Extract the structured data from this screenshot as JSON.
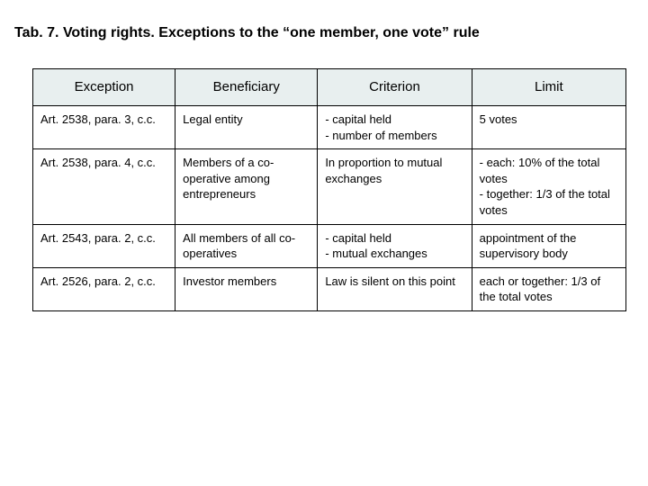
{
  "title": "Tab. 7. Voting rights. Exceptions to the “one member, one vote” rule",
  "table": {
    "headers": [
      "Exception",
      "Beneficiary",
      "Criterion",
      "Limit"
    ],
    "rows": [
      {
        "exception": "Art. 2538, para. 3, c.c.",
        "beneficiary": "Legal entity",
        "criterion": "- capital held\n- number of members",
        "limit": "5 votes"
      },
      {
        "exception": "Art. 2538, para. 4, c.c.",
        "beneficiary": "Members of a co-operative among entrepreneurs",
        "criterion": "In proportion to mutual exchanges",
        "limit": "- each: 10% of the total votes\n- together: 1/3 of the total votes"
      },
      {
        "exception": "Art. 2543, para. 2, c.c.",
        "beneficiary": "All members of all co-operatives",
        "criterion": "- capital held\n- mutual exchanges",
        "limit": "appointment of the supervisory body"
      },
      {
        "exception": "Art. 2526, para. 2, c.c.",
        "beneficiary": "Investor members",
        "criterion": "Law is silent on this point",
        "limit": "each or together: 1/3 of the total votes"
      }
    ],
    "header_bg": "#e8efef",
    "border_color": "#000000",
    "header_fontsize": 15,
    "cell_fontsize": 13,
    "column_widths_pct": [
      24,
      24,
      26,
      26
    ]
  }
}
